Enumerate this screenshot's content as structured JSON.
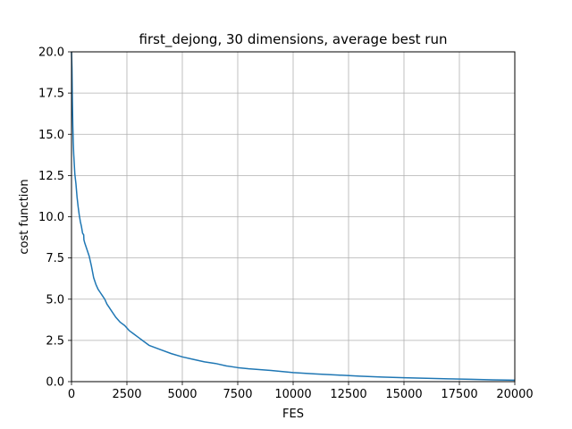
{
  "chart_data": {
    "type": "line",
    "title": "first_dejong, 30 dimensions, average best run",
    "xlabel": "FES",
    "ylabel": "cost function",
    "xlim": [
      0,
      20000
    ],
    "ylim": [
      0,
      20
    ],
    "grid": true,
    "x_ticks": [
      0,
      2500,
      5000,
      7500,
      10000,
      12500,
      15000,
      17500,
      20000
    ],
    "y_ticks": [
      0.0,
      2.5,
      5.0,
      7.5,
      10.0,
      12.5,
      15.0,
      17.5,
      20.0
    ],
    "x_tick_labels": [
      "0",
      "2500",
      "5000",
      "7500",
      "10000",
      "12500",
      "15000",
      "17500",
      "20000"
    ],
    "y_tick_labels": [
      "0.0",
      "2.5",
      "5.0",
      "7.5",
      "10.0",
      "12.5",
      "15.0",
      "17.5",
      "20.0"
    ],
    "series": [
      {
        "name": "average best run",
        "color": "#1f77b4",
        "x": [
          0,
          20,
          40,
          60,
          80,
          100,
          150,
          200,
          250,
          300,
          350,
          400,
          450,
          500,
          550,
          560,
          600,
          700,
          800,
          900,
          1000,
          1100,
          1200,
          1300,
          1400,
          1500,
          1600,
          1700,
          1800,
          2000,
          2200,
          2400,
          2600,
          2800,
          3000,
          3200,
          3500,
          4000,
          4500,
          5000,
          5500,
          6000,
          6500,
          7000,
          7500,
          8000,
          9000,
          10000,
          11000,
          12000,
          13000,
          14000,
          15000,
          16000,
          17000,
          18000,
          19000,
          20000
        ],
        "y": [
          20.0,
          19.0,
          17.0,
          15.5,
          14.5,
          13.8,
          12.6,
          12.0,
          11.2,
          10.6,
          10.1,
          9.7,
          9.4,
          9.0,
          8.9,
          8.6,
          8.4,
          8.0,
          7.6,
          7.0,
          6.3,
          5.9,
          5.6,
          5.4,
          5.2,
          5.0,
          4.7,
          4.5,
          4.3,
          3.9,
          3.6,
          3.4,
          3.1,
          2.9,
          2.7,
          2.5,
          2.2,
          1.95,
          1.7,
          1.5,
          1.35,
          1.2,
          1.1,
          0.95,
          0.85,
          0.78,
          0.68,
          0.55,
          0.47,
          0.4,
          0.33,
          0.28,
          0.24,
          0.2,
          0.17,
          0.14,
          0.11,
          0.09
        ]
      }
    ]
  }
}
